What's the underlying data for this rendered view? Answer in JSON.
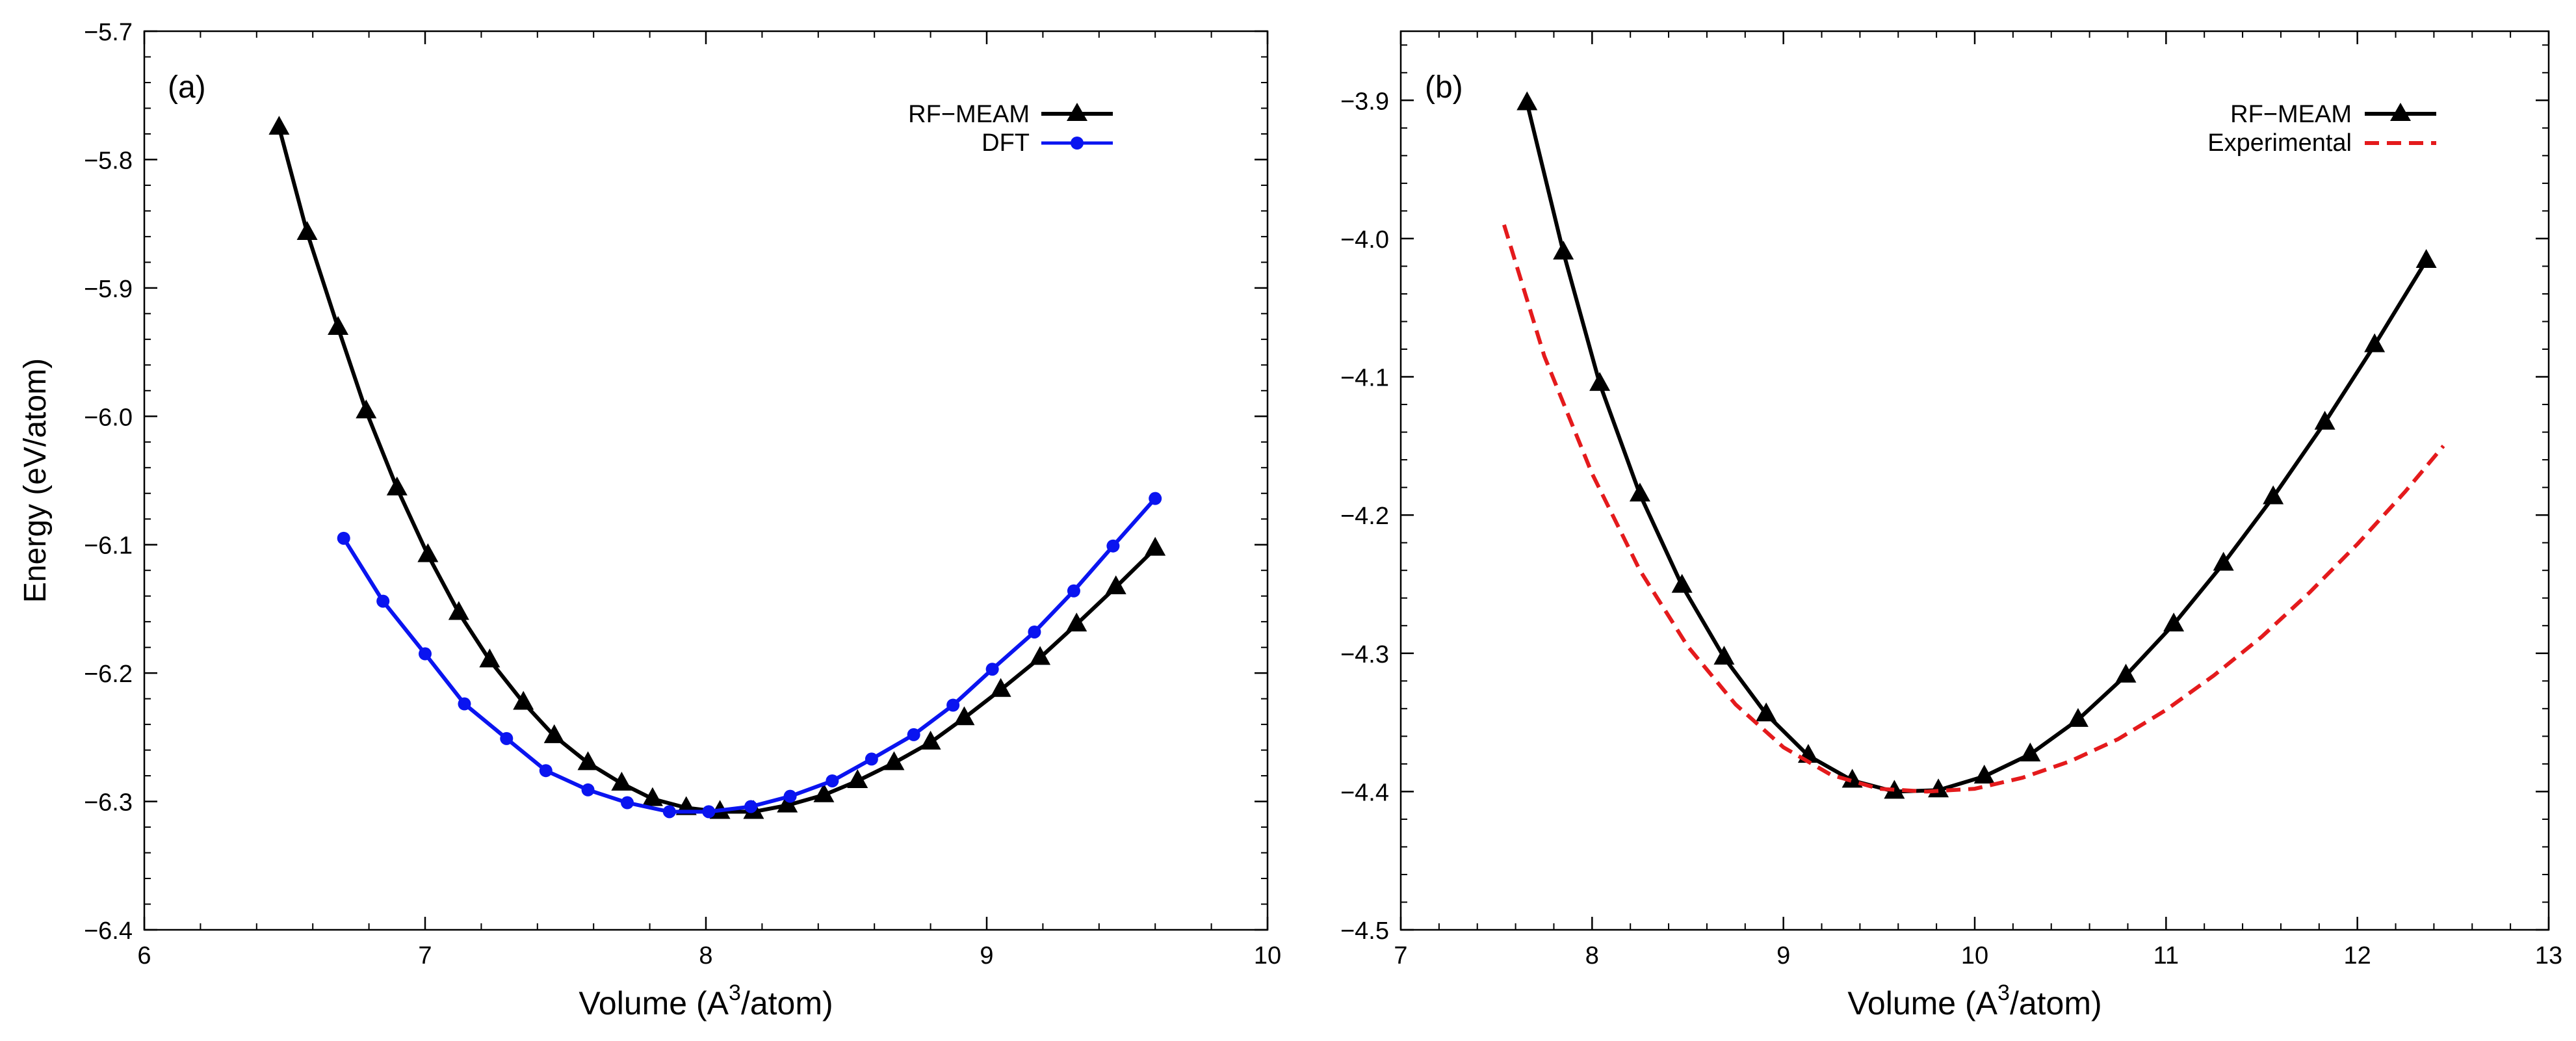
{
  "figure": {
    "ylabel": "Energy (eV/atom)",
    "xlabel_prefix": "Volume (A",
    "xlabel_sup": "3",
    "xlabel_suffix": "/atom)"
  },
  "colors": {
    "rf_meam": "#000000",
    "dft": "#0a14f0",
    "experimental": "#e41a1c"
  },
  "chart_data": [
    {
      "type": "line",
      "panel_label": "(a)",
      "xlim": [
        6,
        10
      ],
      "ylim": [
        -6.4,
        -5.7
      ],
      "xticks": [
        6,
        7,
        8,
        9,
        10
      ],
      "yticks": [
        -6.4,
        -6.3,
        -6.2,
        -6.1,
        -6.0,
        -5.9,
        -5.8,
        -5.7
      ],
      "xtick_labels": [
        "6",
        "7",
        "8",
        "9",
        "10"
      ],
      "ytick_labels": [
        "−6.4",
        "−6.3",
        "−6.2",
        "−6.1",
        "−6.0",
        "−5.9",
        "−5.8",
        "−5.7"
      ],
      "legend_position": "top-right",
      "series": [
        {
          "name": "RF−MEAM",
          "marker": "triangle",
          "style": "solid",
          "color": "#000000",
          "x": [
            6.48,
            6.58,
            6.69,
            6.79,
            6.9,
            7.01,
            7.12,
            7.23,
            7.35,
            7.46,
            7.58,
            7.7,
            7.81,
            7.93,
            8.05,
            8.17,
            8.29,
            8.42,
            8.54,
            8.67,
            8.8,
            8.92,
            9.05,
            9.19,
            9.32,
            9.46,
            9.6
          ],
          "values": [
            -5.775,
            -5.857,
            -5.931,
            -5.996,
            -6.056,
            -6.108,
            -6.153,
            -6.19,
            -6.223,
            -6.249,
            -6.27,
            -6.286,
            -6.298,
            -6.305,
            -6.308,
            -6.308,
            -6.303,
            -6.295,
            -6.284,
            -6.27,
            -6.254,
            -6.235,
            -6.213,
            -6.188,
            -6.162,
            -6.133,
            -6.103
          ]
        },
        {
          "name": "DFT",
          "marker": "circle",
          "style": "solid",
          "color": "#0a14f0",
          "x": [
            6.71,
            6.85,
            7.0,
            7.14,
            7.29,
            7.43,
            7.58,
            7.72,
            7.87,
            8.01,
            8.16,
            8.3,
            8.45,
            8.59,
            8.74,
            8.88,
            9.02,
            9.17,
            9.31,
            9.45,
            9.6
          ],
          "values": [
            -6.095,
            -6.144,
            -6.185,
            -6.224,
            -6.251,
            -6.276,
            -6.291,
            -6.301,
            -6.308,
            -6.308,
            -6.304,
            -6.296,
            -6.284,
            -6.267,
            -6.248,
            -6.225,
            -6.197,
            -6.168,
            -6.136,
            -6.101,
            -6.064
          ]
        }
      ]
    },
    {
      "type": "line",
      "panel_label": "(b)",
      "xlim": [
        7,
        13
      ],
      "ylim": [
        -4.5,
        -3.85
      ],
      "xticks": [
        7,
        8,
        9,
        10,
        11,
        12,
        13
      ],
      "yticks": [
        -4.5,
        -4.4,
        -4.3,
        -4.2,
        -4.1,
        -4.0,
        -3.9
      ],
      "xtick_labels": [
        "7",
        "8",
        "9",
        "10",
        "11",
        "12",
        "13"
      ],
      "ytick_labels": [
        "−4.5",
        "−4.4",
        "−4.3",
        "−4.2",
        "−4.1",
        "−4.0",
        "−3.9"
      ],
      "legend_position": "top-right",
      "series": [
        {
          "name": "RF−MEAM",
          "marker": "triangle",
          "style": "solid",
          "color": "#000000",
          "x": [
            7.66,
            7.85,
            8.04,
            8.25,
            8.47,
            8.69,
            8.91,
            9.13,
            9.36,
            9.58,
            9.81,
            10.05,
            10.29,
            10.54,
            10.79,
            11.04,
            11.3,
            11.56,
            11.83,
            12.09,
            12.36
          ],
          "values": [
            -3.902,
            -4.01,
            -4.105,
            -4.185,
            -4.251,
            -4.303,
            -4.344,
            -4.374,
            -4.392,
            -4.4,
            -4.399,
            -4.389,
            -4.373,
            -4.348,
            -4.316,
            -4.279,
            -4.235,
            -4.187,
            -4.133,
            -4.077,
            -4.016
          ]
        },
        {
          "name": "Experimental",
          "marker": "none",
          "style": "dashed",
          "color": "#e41a1c",
          "x": [
            7.54,
            7.75,
            8.0,
            8.25,
            8.5,
            8.75,
            9.0,
            9.25,
            9.5,
            9.75,
            10.0,
            10.25,
            10.5,
            10.75,
            11.0,
            11.25,
            11.5,
            11.75,
            12.0,
            12.25,
            12.45
          ],
          "values": [
            -3.99,
            -4.085,
            -4.17,
            -4.24,
            -4.295,
            -4.337,
            -4.368,
            -4.388,
            -4.398,
            -4.4,
            -4.398,
            -4.39,
            -4.378,
            -4.362,
            -4.341,
            -4.316,
            -4.288,
            -4.256,
            -4.221,
            -4.183,
            -4.15
          ]
        }
      ]
    }
  ]
}
